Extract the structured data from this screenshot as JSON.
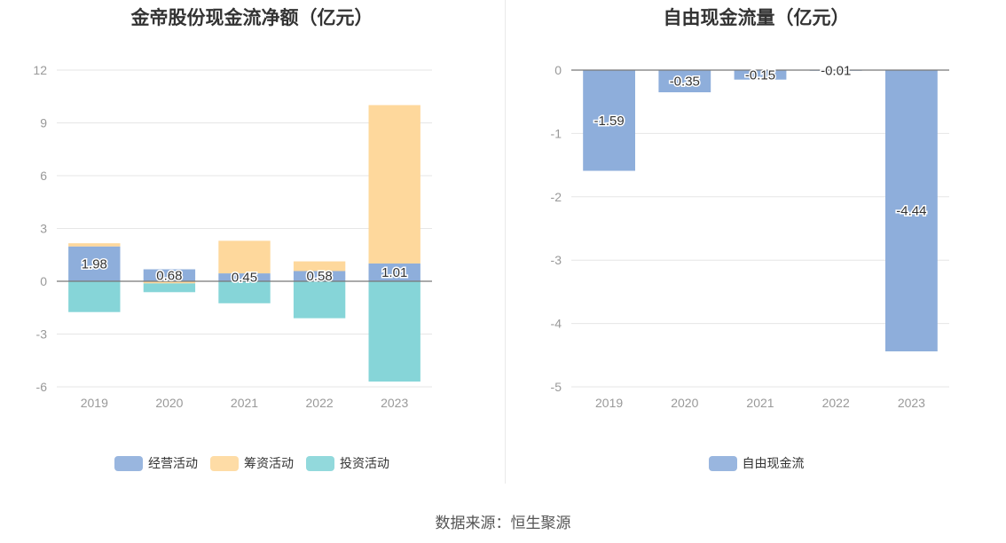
{
  "source": "数据来源：恒生聚源",
  "chart_data": [
    {
      "type": "bar",
      "stacked": true,
      "title": "金帝股份现金流净额（亿元）",
      "categories": [
        "2019",
        "2020",
        "2021",
        "2022",
        "2023"
      ],
      "ylim": [
        -6,
        12
      ],
      "yticks": [
        12,
        9,
        6,
        3,
        0,
        -3,
        -6
      ],
      "legend_position": "bottom",
      "grid": true,
      "series": [
        {
          "name": "经营活动",
          "color": "#8eaedb",
          "values": [
            1.98,
            0.68,
            0.45,
            0.58,
            1.01
          ],
          "labels": [
            "1.98",
            "0.68",
            "0.45",
            "0.58",
            "1.01"
          ]
        },
        {
          "name": "筹资活动",
          "color": "#fed89c",
          "values": [
            0.18,
            -0.12,
            1.85,
            0.55,
            9.0
          ]
        },
        {
          "name": "投资活动",
          "color": "#86d5d8",
          "values": [
            -1.75,
            -0.5,
            -1.25,
            -2.1,
            -5.7
          ]
        }
      ]
    },
    {
      "type": "bar",
      "title": "自由现金流量（亿元）",
      "categories": [
        "2019",
        "2020",
        "2021",
        "2022",
        "2023"
      ],
      "ylim": [
        -5,
        0
      ],
      "yticks": [
        0,
        -1,
        -2,
        -3,
        -4,
        -5
      ],
      "legend_position": "bottom",
      "grid": true,
      "series": [
        {
          "name": "自由现金流",
          "color": "#8eaedb",
          "values": [
            -1.59,
            -0.35,
            -0.15,
            -0.01,
            -4.44
          ],
          "labels": [
            "-1.59",
            "-0.35",
            "-0.15",
            "-0.01",
            "-4.44"
          ]
        }
      ]
    }
  ]
}
